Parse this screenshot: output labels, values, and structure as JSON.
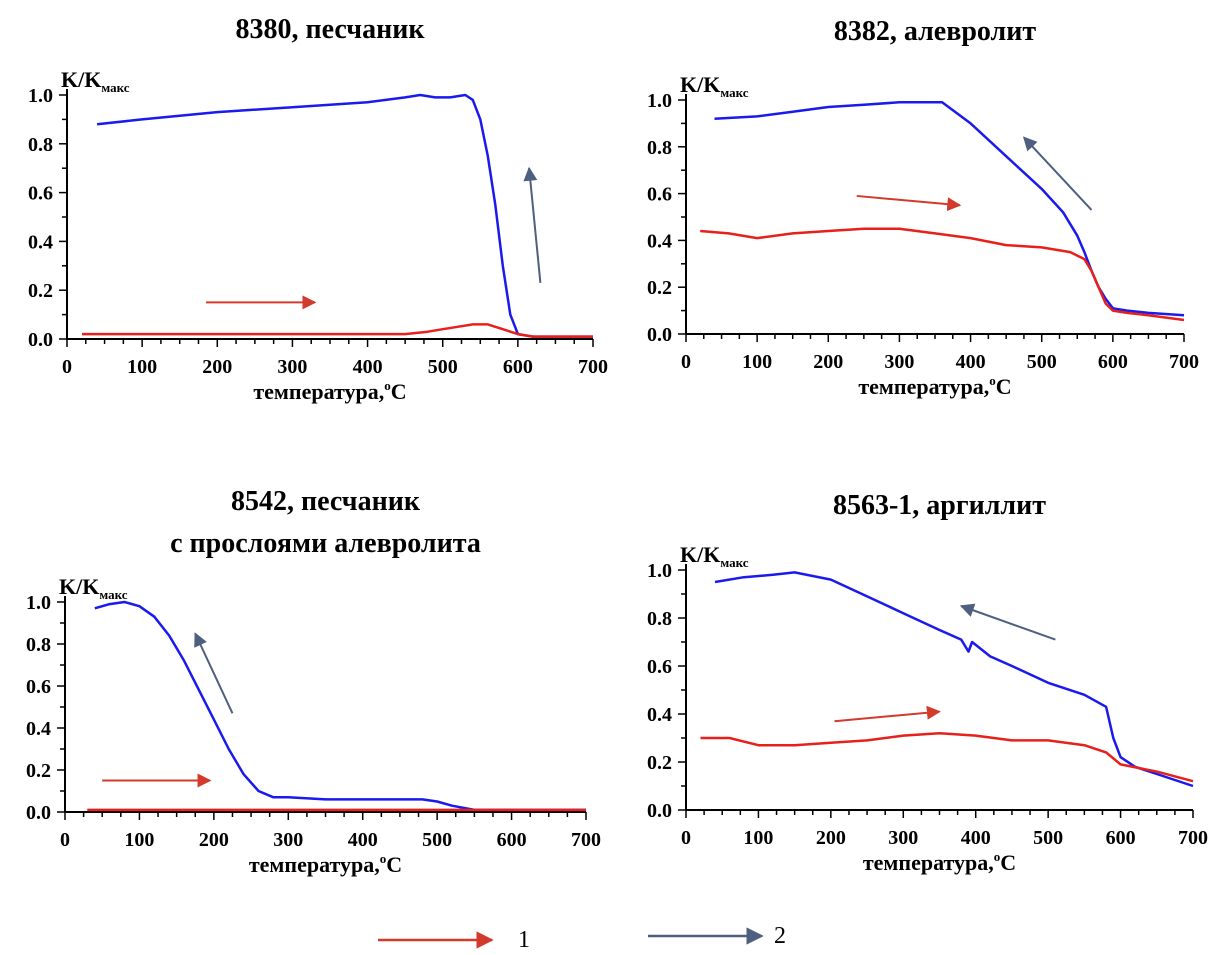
{
  "colors": {
    "heating": "#e8201b",
    "cooling": "#1a1aee",
    "arrow_red": "#d33a2c",
    "arrow_blue": "#4f5f80"
  },
  "legend": {
    "item1": "1",
    "item2": "2"
  },
  "chart_data": [
    {
      "type": "line",
      "title": "8380, песчаник",
      "ylabel": "K/K",
      "ylabel_sub": "макс",
      "xlabel": "температура,",
      "xlabel_deg": "o",
      "xlabel_unit": "C",
      "xlim": [
        0,
        700
      ],
      "ylim": [
        0,
        1.0
      ],
      "xticks": [
        "0",
        "100",
        "200",
        "300",
        "400",
        "500",
        "600",
        "700"
      ],
      "yticks": [
        "0.0",
        "0.2",
        "0.4",
        "0.6",
        "0.8",
        "1.0"
      ],
      "series": [
        {
          "key": "cooling",
          "x": [
            40,
            100,
            200,
            300,
            400,
            450,
            470,
            490,
            510,
            530,
            540,
            550,
            560,
            570,
            580,
            590,
            600,
            620,
            650,
            700
          ],
          "y": [
            0.88,
            0.9,
            0.93,
            0.95,
            0.97,
            0.99,
            1.0,
            0.99,
            0.99,
            1.0,
            0.98,
            0.9,
            0.75,
            0.55,
            0.3,
            0.1,
            0.02,
            0.01,
            0.01,
            0.01
          ]
        },
        {
          "key": "heating",
          "x": [
            20,
            100,
            200,
            300,
            400,
            450,
            480,
            500,
            520,
            540,
            560,
            580,
            600,
            620,
            650,
            700
          ],
          "y": [
            0.02,
            0.02,
            0.02,
            0.02,
            0.02,
            0.02,
            0.03,
            0.04,
            0.05,
            0.06,
            0.06,
            0.04,
            0.02,
            0.01,
            0.01,
            0.01
          ]
        }
      ],
      "arrows": [
        {
          "color": "red",
          "from": [
            185,
            0.15
          ],
          "to": [
            330,
            0.15
          ]
        },
        {
          "color": "blue",
          "from": [
            630,
            0.23
          ],
          "to": [
            615,
            0.7
          ]
        }
      ]
    },
    {
      "type": "line",
      "title": "8382, алевролит",
      "ylabel": "K/K",
      "ylabel_sub": "макс",
      "xlabel": "температура,",
      "xlabel_deg": "o",
      "xlabel_unit": "C",
      "xlim": [
        0,
        700
      ],
      "ylim": [
        0,
        1.0
      ],
      "xticks": [
        "0",
        "100",
        "200",
        "300",
        "400",
        "500",
        "600",
        "700"
      ],
      "yticks": [
        "0.0",
        "0.2",
        "0.4",
        "0.6",
        "0.8",
        "1.0"
      ],
      "series": [
        {
          "key": "cooling",
          "x": [
            40,
            100,
            150,
            200,
            250,
            300,
            360,
            400,
            450,
            500,
            530,
            550,
            560,
            570,
            580,
            590,
            600,
            620,
            650,
            700
          ],
          "y": [
            0.92,
            0.93,
            0.95,
            0.97,
            0.98,
            0.99,
            0.99,
            0.9,
            0.76,
            0.62,
            0.52,
            0.42,
            0.35,
            0.27,
            0.2,
            0.15,
            0.11,
            0.1,
            0.09,
            0.08
          ]
        },
        {
          "key": "heating",
          "x": [
            20,
            60,
            100,
            150,
            200,
            250,
            300,
            350,
            400,
            450,
            500,
            540,
            560,
            570,
            580,
            590,
            600,
            620,
            650,
            700
          ],
          "y": [
            0.44,
            0.43,
            0.41,
            0.43,
            0.44,
            0.45,
            0.45,
            0.43,
            0.41,
            0.38,
            0.37,
            0.35,
            0.32,
            0.27,
            0.2,
            0.13,
            0.1,
            0.09,
            0.08,
            0.06
          ]
        }
      ],
      "arrows": [
        {
          "color": "red",
          "from": [
            240,
            0.59
          ],
          "to": [
            385,
            0.55
          ]
        },
        {
          "color": "blue",
          "from": [
            570,
            0.53
          ],
          "to": [
            475,
            0.84
          ]
        }
      ]
    },
    {
      "type": "line",
      "title": "8542, песчаник",
      "title2": "с прослоями алевролита",
      "ylabel": "K/K",
      "ylabel_sub": "макс",
      "xlabel": "температура,",
      "xlabel_deg": "o",
      "xlabel_unit": "C",
      "xlim": [
        0,
        700
      ],
      "ylim": [
        0,
        1.0
      ],
      "xticks": [
        "0",
        "100",
        "200",
        "300",
        "400",
        "500",
        "600",
        "700"
      ],
      "yticks": [
        "0.0",
        "0.2",
        "0.4",
        "0.6",
        "0.8",
        "1.0"
      ],
      "series": [
        {
          "key": "cooling",
          "x": [
            40,
            60,
            80,
            100,
            120,
            140,
            160,
            180,
            200,
            220,
            240,
            260,
            280,
            300,
            350,
            400,
            450,
            480,
            500,
            520,
            550,
            600,
            650,
            700
          ],
          "y": [
            0.97,
            0.99,
            1.0,
            0.98,
            0.93,
            0.84,
            0.72,
            0.58,
            0.44,
            0.3,
            0.18,
            0.1,
            0.07,
            0.07,
            0.06,
            0.06,
            0.06,
            0.06,
            0.05,
            0.03,
            0.01,
            0.01,
            0.01,
            0.01
          ]
        },
        {
          "key": "heating",
          "x": [
            30,
            100,
            200,
            300,
            400,
            500,
            600,
            700
          ],
          "y": [
            0.01,
            0.01,
            0.01,
            0.01,
            0.01,
            0.01,
            0.01,
            0.01
          ]
        }
      ],
      "arrows": [
        {
          "color": "red",
          "from": [
            50,
            0.15
          ],
          "to": [
            195,
            0.15
          ]
        },
        {
          "color": "blue",
          "from": [
            225,
            0.47
          ],
          "to": [
            175,
            0.85
          ]
        }
      ]
    },
    {
      "type": "line",
      "title": "8563-1, аргиллит",
      "ylabel": "K/K",
      "ylabel_sub": "макс",
      "xlabel": "температура,",
      "xlabel_deg": "o",
      "xlabel_unit": "C",
      "xlim": [
        0,
        700
      ],
      "ylim": [
        0,
        1.0
      ],
      "xticks": [
        "0",
        "100",
        "200",
        "300",
        "400",
        "500",
        "600",
        "700"
      ],
      "yticks": [
        "0.0",
        "0.2",
        "0.4",
        "0.6",
        "0.8",
        "1.0"
      ],
      "series": [
        {
          "key": "cooling",
          "x": [
            40,
            80,
            120,
            150,
            200,
            250,
            300,
            350,
            380,
            390,
            395,
            420,
            450,
            500,
            550,
            580,
            590,
            600,
            620,
            650,
            700
          ],
          "y": [
            0.95,
            0.97,
            0.98,
            0.99,
            0.96,
            0.89,
            0.82,
            0.75,
            0.71,
            0.66,
            0.7,
            0.64,
            0.6,
            0.53,
            0.48,
            0.43,
            0.3,
            0.22,
            0.18,
            0.15,
            0.1
          ]
        },
        {
          "key": "heating",
          "x": [
            20,
            60,
            100,
            150,
            200,
            250,
            300,
            350,
            400,
            450,
            500,
            550,
            580,
            600,
            650,
            700
          ],
          "y": [
            0.3,
            0.3,
            0.27,
            0.27,
            0.28,
            0.29,
            0.31,
            0.32,
            0.31,
            0.29,
            0.29,
            0.27,
            0.24,
            0.19,
            0.16,
            0.12
          ]
        }
      ],
      "arrows": [
        {
          "color": "red",
          "from": [
            205,
            0.37
          ],
          "to": [
            350,
            0.41
          ]
        },
        {
          "color": "blue",
          "from": [
            510,
            0.71
          ],
          "to": [
            380,
            0.85
          ]
        }
      ]
    }
  ]
}
